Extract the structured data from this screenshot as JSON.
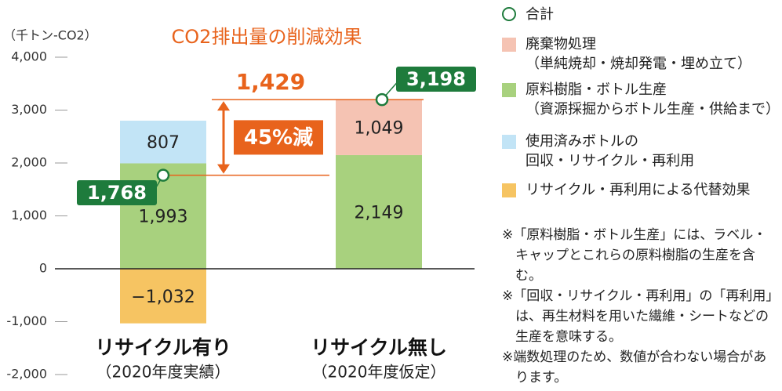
{
  "chart_data": {
    "type": "stacked_bar",
    "title": "CO2排出量の削減効果",
    "y_label": "（千トン-CO2）",
    "categories": [
      "リサイクル有り",
      "リサイクル無し"
    ],
    "category_notes": [
      "（2020年度実績）",
      "（2020年度仮定）"
    ],
    "series": [
      {
        "name": "廃棄物処理",
        "description": "（単純焼却・焼却発電・埋め立て）",
        "color": "#f5c3b3",
        "values": [
          null,
          1049
        ],
        "value_labels": [
          null,
          "1,049"
        ]
      },
      {
        "name": "原料樹脂・ボトル生産",
        "description": "（資源採掘からボトル生産・供給まで）",
        "color": "#a8d17e",
        "values": [
          1993,
          2149
        ],
        "value_labels": [
          "1,993",
          "2,149"
        ]
      },
      {
        "name": "使用済みボトルの\n回収・リサイクル・再利用",
        "color": "#c2e4f6",
        "values": [
          807,
          null
        ],
        "value_labels": [
          "807",
          null
        ]
      },
      {
        "name": "リサイクル・再利用による代替効果",
        "color": "#f6c462",
        "values": [
          -1032,
          null
        ],
        "value_labels": [
          "−1,032",
          null
        ]
      }
    ],
    "totals": {
      "name": "合計",
      "color": "#1e7b3c",
      "values": [
        1768,
        3198
      ],
      "value_labels": [
        "1,768",
        "3,198"
      ]
    },
    "difference": {
      "value": 1429,
      "value_label": "1,429",
      "label": "45%減",
      "color": "#e8631c"
    },
    "ylim": [
      -2000,
      4000
    ],
    "yticks": [
      {
        "value": -2000,
        "label": "-2,000"
      },
      {
        "value": -1000,
        "label": "-1,000"
      },
      0,
      {
        "value": 1000,
        "label": "1,000"
      },
      {
        "value": 2000,
        "label": "2,000"
      },
      {
        "value": 3000,
        "label": "3,000"
      },
      {
        "value": 4000,
        "label": "4,000"
      }
    ],
    "notes": [
      "※「原料樹脂・ボトル生産」には、ラベル・キャップとこれらの原料樹脂の生産を含む。",
      "※「回収・リサイクル・再利用」の「再利用」は、再生材料を用いた繊維・シートなどの生産を意味する。",
      "※端数処理のため、数値が合わない場合があります。"
    ]
  }
}
